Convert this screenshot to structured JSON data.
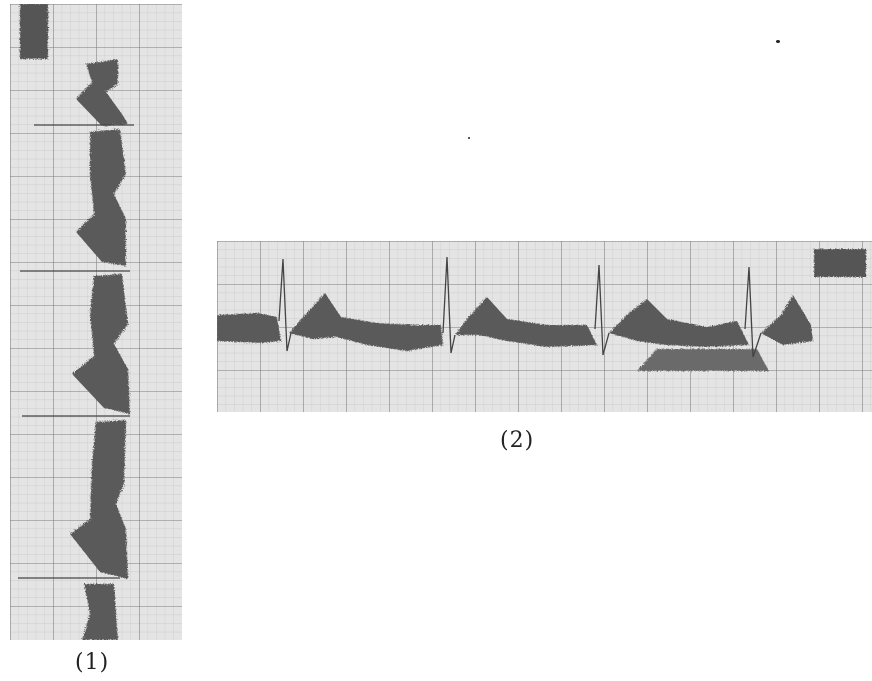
{
  "figure": {
    "panel_1": {
      "caption": "(1)"
    },
    "panel_2": {
      "caption": "(2)"
    }
  },
  "colors": {
    "paper": "#e4e4e4",
    "grid_minor": "#c4c4c4",
    "grid_major": "#7a7a7a",
    "trace": "#555555"
  }
}
